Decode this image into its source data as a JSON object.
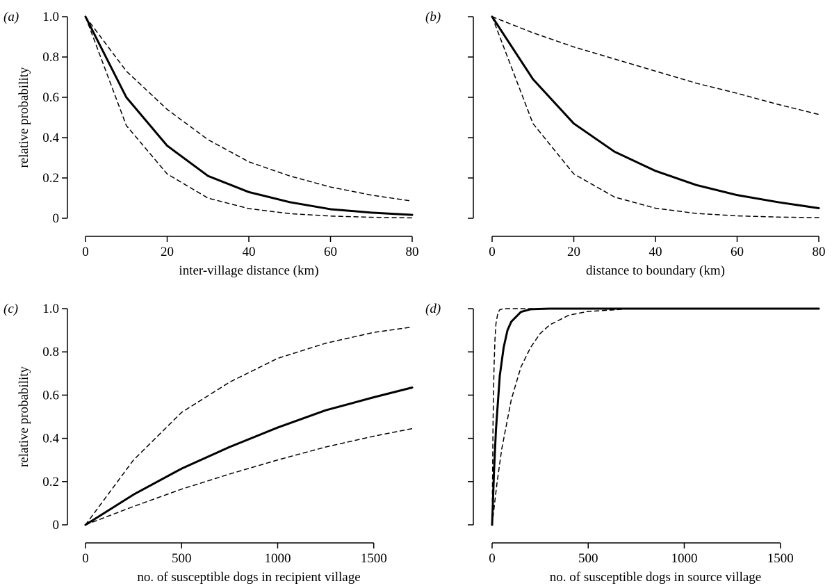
{
  "chart_data": [
    {
      "type": "line",
      "panel_label": "(a)",
      "xlabel": "inter-village distance (km)",
      "ylabel": "relative probability",
      "xlim": [
        0,
        80
      ],
      "ylim": [
        0,
        1
      ],
      "xticks": [
        0,
        20,
        40,
        60,
        80
      ],
      "yticks": [
        0,
        0.2,
        0.4,
        0.6,
        0.8,
        1.0
      ],
      "show_y_tick_labels": true,
      "series": [
        {
          "style": "solid",
          "x": [
            0,
            10,
            20,
            30,
            40,
            50,
            60,
            70,
            80
          ],
          "y": [
            1.0,
            0.6,
            0.36,
            0.21,
            0.13,
            0.08,
            0.045,
            0.028,
            0.017
          ]
        },
        {
          "style": "dashed",
          "x": [
            0,
            10,
            20,
            30,
            40,
            50,
            60,
            70,
            80
          ],
          "y": [
            1.0,
            0.73,
            0.54,
            0.39,
            0.28,
            0.21,
            0.155,
            0.115,
            0.085
          ]
        },
        {
          "style": "dashed",
          "x": [
            0,
            10,
            20,
            30,
            40,
            50,
            60,
            70,
            80
          ],
          "y": [
            1.0,
            0.46,
            0.22,
            0.1,
            0.048,
            0.023,
            0.011,
            0.005,
            0.002
          ]
        }
      ]
    },
    {
      "type": "line",
      "panel_label": "(b)",
      "xlabel": "distance to boundary (km)",
      "ylabel": "",
      "xlim": [
        0,
        80
      ],
      "ylim": [
        0,
        1
      ],
      "xticks": [
        0,
        20,
        40,
        60,
        80
      ],
      "yticks": [
        0,
        0.2,
        0.4,
        0.6,
        0.8,
        1.0
      ],
      "show_y_tick_labels": false,
      "series": [
        {
          "style": "solid",
          "x": [
            0,
            10,
            20,
            30,
            40,
            50,
            60,
            70,
            80
          ],
          "y": [
            1.0,
            0.69,
            0.47,
            0.33,
            0.235,
            0.165,
            0.115,
            0.08,
            0.05
          ]
        },
        {
          "style": "dashed",
          "x": [
            0,
            10,
            20,
            30,
            40,
            50,
            60,
            70,
            80
          ],
          "y": [
            1.0,
            0.92,
            0.85,
            0.79,
            0.73,
            0.67,
            0.62,
            0.565,
            0.515
          ]
        },
        {
          "style": "dashed",
          "x": [
            0,
            10,
            20,
            30,
            40,
            50,
            60,
            70,
            80
          ],
          "y": [
            1.0,
            0.47,
            0.22,
            0.105,
            0.05,
            0.024,
            0.012,
            0.006,
            0.003
          ]
        }
      ]
    },
    {
      "type": "line",
      "panel_label": "(c)",
      "xlabel": "no. of susceptible dogs in recipient village",
      "ylabel": "relative probability",
      "xlim": [
        0,
        1700
      ],
      "ylim": [
        0,
        1
      ],
      "xticks": [
        0,
        500,
        1000,
        1500
      ],
      "yticks": [
        0,
        0.2,
        0.4,
        0.6,
        0.8,
        1.0
      ],
      "show_y_tick_labels": true,
      "series": [
        {
          "style": "solid",
          "x": [
            0,
            250,
            500,
            750,
            1000,
            1250,
            1500,
            1700
          ],
          "y": [
            0.0,
            0.14,
            0.26,
            0.36,
            0.45,
            0.53,
            0.59,
            0.635
          ]
        },
        {
          "style": "dashed",
          "x": [
            0,
            250,
            500,
            750,
            1000,
            1250,
            1500,
            1700
          ],
          "y": [
            0.0,
            0.3,
            0.52,
            0.66,
            0.77,
            0.84,
            0.89,
            0.915
          ]
        },
        {
          "style": "dashed",
          "x": [
            0,
            250,
            500,
            750,
            1000,
            1250,
            1500,
            1700
          ],
          "y": [
            0.0,
            0.085,
            0.165,
            0.235,
            0.3,
            0.36,
            0.41,
            0.445
          ]
        }
      ]
    },
    {
      "type": "line",
      "panel_label": "(d)",
      "xlabel": "no. of susceptible dogs in source village",
      "ylabel": "",
      "xlim": [
        0,
        1700
      ],
      "ylim": [
        0,
        1
      ],
      "xticks": [
        0,
        500,
        1000,
        1500
      ],
      "yticks": [
        0,
        0.2,
        0.4,
        0.6,
        0.8,
        1.0
      ],
      "show_y_tick_labels": false,
      "series": [
        {
          "style": "solid",
          "x": [
            0,
            10,
            20,
            40,
            60,
            80,
            100,
            150,
            200,
            300,
            1700
          ],
          "y": [
            0.0,
            0.25,
            0.44,
            0.69,
            0.82,
            0.9,
            0.94,
            0.985,
            0.997,
            1.0,
            1.0
          ]
        },
        {
          "style": "dashed",
          "x": [
            0,
            5,
            10,
            15,
            20,
            30,
            40,
            60,
            1700
          ],
          "y": [
            0.0,
            0.48,
            0.73,
            0.86,
            0.93,
            0.98,
            0.995,
            1.0,
            1.0
          ]
        },
        {
          "style": "dashed",
          "x": [
            0,
            25,
            50,
            100,
            150,
            200,
            250,
            300,
            400,
            500,
            700,
            1000,
            1700
          ],
          "y": [
            0.0,
            0.19,
            0.35,
            0.58,
            0.73,
            0.82,
            0.885,
            0.925,
            0.97,
            0.987,
            0.998,
            1.0,
            1.0
          ]
        }
      ]
    }
  ]
}
